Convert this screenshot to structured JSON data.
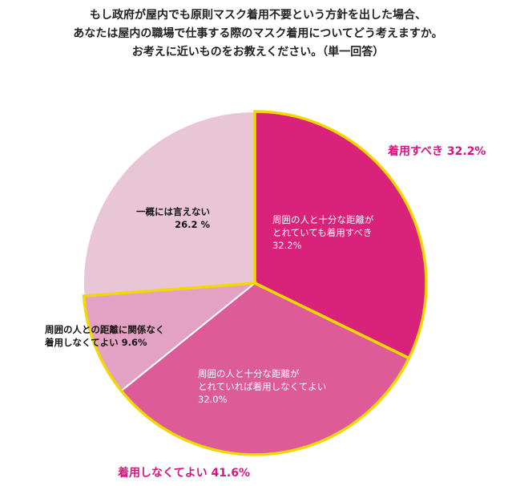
{
  "title_lines": [
    "もし政府が屋内でも原則マスク着用不要という方針を出した場合、",
    "あなたは屋内の職場で仕事する際のマスク着用についてどう考えますか。",
    "お考えに近いものをお教えください。（単一回答）"
  ],
  "chart_data": {
    "type": "pie",
    "unit": "%",
    "slices": [
      {
        "label_lines": [
          "周囲の人と十分な距離が",
          "とれていても着用すべき"
        ],
        "value": 32.2,
        "value_text": "32.2%",
        "color": "#d9237a"
      },
      {
        "label_lines": [
          "周囲の人と十分な距離が",
          "とれていれば着用しなくてよい"
        ],
        "value": 32.0,
        "value_text": "32.0%",
        "color": "#dd5c98"
      },
      {
        "label_lines": [
          "周囲の人との距離に関係なく",
          "着用しなくてよい 9.6%"
        ],
        "value": 9.6,
        "value_text": "",
        "color": "#e3a2c3"
      },
      {
        "label_lines": [
          "一概には言えない"
        ],
        "value": 26.2,
        "value_text": "26.2 %",
        "color": "#e8c6d6"
      }
    ],
    "summary_labels": [
      {
        "text": "着用すべき 32.2%",
        "value": 32.2
      },
      {
        "text": "着用しなくてよい 41.6%",
        "value": 41.6
      }
    ],
    "colors": {
      "outline": "#ffffff",
      "highlight": "#f0d800",
      "summary_text": "#d9147f"
    }
  }
}
